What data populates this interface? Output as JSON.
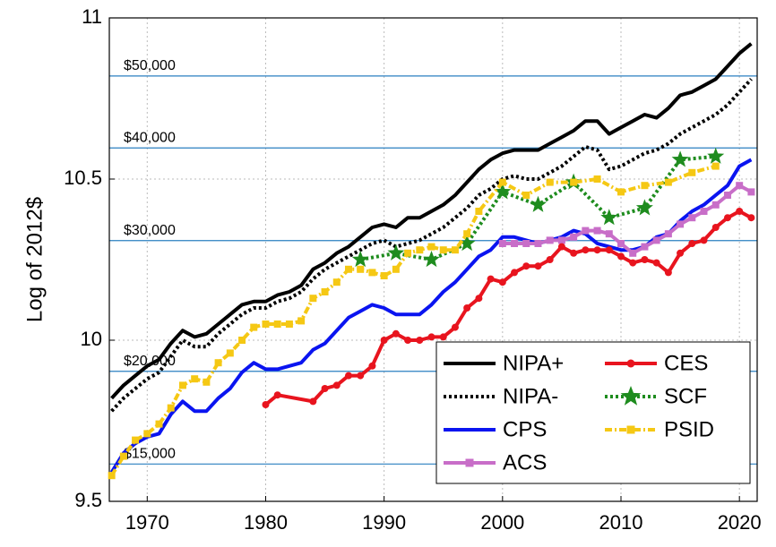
{
  "chart_data": {
    "type": "line",
    "ylabel": "Log of 2012$",
    "xlim": [
      1966.8,
      2021.5
    ],
    "ylim": [
      9.5,
      11
    ],
    "xticks": [
      1970,
      1980,
      1990,
      2000,
      2010,
      2020
    ],
    "yticks": [
      9.5,
      10,
      10.5,
      11
    ],
    "grid": true,
    "legend": "lower right",
    "reference_lines": [
      {
        "value": 10.8198,
        "label": "$50,000"
      },
      {
        "value": 10.5966,
        "label": "$40,000"
      },
      {
        "value": 10.309,
        "label": "$30,000"
      },
      {
        "value": 9.9035,
        "label": "$20,000"
      },
      {
        "value": 9.6158,
        "label": "$15,000"
      }
    ],
    "reference_color": "#2a7fc0",
    "series": [
      {
        "name": "NIPA+",
        "color": "#000000",
        "style": "solid",
        "marker": "none",
        "x": [
          1967,
          1968,
          1969,
          1970,
          1971,
          1972,
          1973,
          1974,
          1975,
          1976,
          1977,
          1978,
          1979,
          1980,
          1981,
          1982,
          1983,
          1984,
          1985,
          1986,
          1987,
          1988,
          1989,
          1990,
          1991,
          1992,
          1993,
          1994,
          1995,
          1996,
          1997,
          1998,
          1999,
          2000,
          2001,
          2002,
          2003,
          2004,
          2005,
          2006,
          2007,
          2008,
          2009,
          2010,
          2011,
          2012,
          2013,
          2014,
          2015,
          2016,
          2017,
          2018,
          2019,
          2020,
          2021
        ],
        "values": [
          9.82,
          9.86,
          9.89,
          9.92,
          9.94,
          9.99,
          10.03,
          10.01,
          10.02,
          10.05,
          10.08,
          10.11,
          10.12,
          10.12,
          10.14,
          10.15,
          10.17,
          10.22,
          10.24,
          10.27,
          10.29,
          10.32,
          10.35,
          10.36,
          10.35,
          10.38,
          10.38,
          10.4,
          10.42,
          10.45,
          10.49,
          10.53,
          10.56,
          10.58,
          10.59,
          10.59,
          10.59,
          10.61,
          10.63,
          10.65,
          10.68,
          10.68,
          10.64,
          10.66,
          10.68,
          10.7,
          10.69,
          10.72,
          10.76,
          10.77,
          10.79,
          10.81,
          10.85,
          10.89,
          10.92
        ]
      },
      {
        "name": "NIPA-",
        "color": "#000000",
        "style": "dotted",
        "marker": "none",
        "x": [
          1967,
          1968,
          1969,
          1970,
          1971,
          1972,
          1973,
          1974,
          1975,
          1976,
          1977,
          1978,
          1979,
          1980,
          1981,
          1982,
          1983,
          1984,
          1985,
          1986,
          1987,
          1988,
          1989,
          1990,
          1991,
          1992,
          1993,
          1994,
          1995,
          1996,
          1997,
          1998,
          1999,
          2000,
          2001,
          2002,
          2003,
          2004,
          2005,
          2006,
          2007,
          2008,
          2009,
          2010,
          2011,
          2012,
          2013,
          2014,
          2015,
          2016,
          2017,
          2018,
          2019,
          2020,
          2021
        ],
        "values": [
          9.78,
          9.82,
          9.85,
          9.88,
          9.9,
          9.95,
          10.0,
          9.98,
          9.98,
          10.02,
          10.05,
          10.08,
          10.1,
          10.1,
          10.12,
          10.13,
          10.15,
          10.19,
          10.22,
          10.24,
          10.26,
          10.28,
          10.3,
          10.31,
          10.29,
          10.3,
          10.31,
          10.33,
          10.35,
          10.38,
          10.41,
          10.45,
          10.47,
          10.5,
          10.51,
          10.5,
          10.5,
          10.52,
          10.54,
          10.57,
          10.6,
          10.59,
          10.53,
          10.54,
          10.56,
          10.58,
          10.59,
          10.61,
          10.64,
          10.66,
          10.68,
          10.7,
          10.73,
          10.77,
          10.81
        ]
      },
      {
        "name": "CPS",
        "color": "#0a14f0",
        "style": "solid",
        "marker": "none",
        "x": [
          1967,
          1968,
          1969,
          1970,
          1971,
          1972,
          1973,
          1974,
          1975,
          1976,
          1977,
          1978,
          1979,
          1980,
          1981,
          1982,
          1983,
          1984,
          1985,
          1986,
          1987,
          1988,
          1989,
          1990,
          1991,
          1992,
          1993,
          1994,
          1995,
          1996,
          1997,
          1998,
          1999,
          2000,
          2001,
          2002,
          2003,
          2004,
          2005,
          2006,
          2007,
          2008,
          2009,
          2010,
          2011,
          2012,
          2013,
          2014,
          2015,
          2016,
          2017,
          2018,
          2019,
          2020,
          2021
        ],
        "values": [
          9.59,
          9.65,
          9.68,
          9.7,
          9.71,
          9.77,
          9.81,
          9.78,
          9.78,
          9.82,
          9.85,
          9.9,
          9.93,
          9.91,
          9.91,
          9.92,
          9.93,
          9.97,
          9.99,
          10.03,
          10.07,
          10.09,
          10.11,
          10.1,
          10.08,
          10.08,
          10.08,
          10.11,
          10.15,
          10.18,
          10.22,
          10.26,
          10.28,
          10.32,
          10.32,
          10.31,
          10.3,
          10.31,
          10.32,
          10.34,
          10.33,
          10.3,
          10.29,
          10.28,
          10.28,
          10.29,
          10.32,
          10.33,
          10.37,
          10.4,
          10.42,
          10.45,
          10.48,
          10.54,
          10.56
        ]
      },
      {
        "name": "ACS",
        "color": "#c86ec8",
        "style": "solid",
        "marker": "square",
        "x": [
          2000,
          2001,
          2002,
          2003,
          2004,
          2005,
          2006,
          2007,
          2008,
          2009,
          2010,
          2011,
          2012,
          2013,
          2014,
          2015,
          2016,
          2017,
          2018,
          2019,
          2020,
          2021
        ],
        "values": [
          10.3,
          10.3,
          10.3,
          10.3,
          10.31,
          10.31,
          10.32,
          10.34,
          10.34,
          10.33,
          10.3,
          10.27,
          10.29,
          10.31,
          10.33,
          10.36,
          10.38,
          10.4,
          10.42,
          10.45,
          10.48,
          10.46
        ]
      },
      {
        "name": "CES",
        "color": "#e8141e",
        "style": "solid",
        "marker": "circle",
        "x": [
          1980,
          1981,
          1984,
          1985,
          1986,
          1987,
          1988,
          1989,
          1990,
          1991,
          1992,
          1993,
          1994,
          1995,
          1996,
          1997,
          1998,
          1999,
          2000,
          2001,
          2002,
          2003,
          2004,
          2005,
          2006,
          2007,
          2008,
          2009,
          2010,
          2011,
          2012,
          2013,
          2014,
          2015,
          2016,
          2017,
          2018,
          2019,
          2020,
          2021
        ],
        "values": [
          9.8,
          9.83,
          9.81,
          9.85,
          9.86,
          9.89,
          9.89,
          9.92,
          10.0,
          10.02,
          10.0,
          10.0,
          10.01,
          10.01,
          10.04,
          10.1,
          10.13,
          10.19,
          10.18,
          10.21,
          10.23,
          10.23,
          10.25,
          10.29,
          10.27,
          10.28,
          10.28,
          10.28,
          10.26,
          10.24,
          10.25,
          10.24,
          10.21,
          10.27,
          10.3,
          10.31,
          10.35,
          10.38,
          10.4,
          10.38
        ]
      },
      {
        "name": "SCF",
        "color": "#1e8c1e",
        "style": "dotted",
        "marker": "star",
        "x": [
          1988,
          1991,
          1994,
          1997,
          2000,
          2003,
          2006,
          2009,
          2012,
          2015,
          2018
        ],
        "values": [
          10.25,
          10.27,
          10.25,
          10.3,
          10.46,
          10.42,
          10.49,
          10.38,
          10.41,
          10.56,
          10.57
        ]
      },
      {
        "name": "PSID",
        "color": "#f5c814",
        "style": "dashdot",
        "marker": "square",
        "x": [
          1967,
          1968,
          1969,
          1970,
          1971,
          1972,
          1973,
          1974,
          1975,
          1976,
          1977,
          1978,
          1979,
          1980,
          1981,
          1982,
          1983,
          1984,
          1985,
          1986,
          1987,
          1988,
          1989,
          1990,
          1991,
          1992,
          1993,
          1994,
          1995,
          1996,
          1997,
          1998,
          2000,
          2002,
          2004,
          2006,
          2008,
          2010,
          2012,
          2014,
          2016,
          2018
        ],
        "values": [
          9.58,
          9.64,
          9.69,
          9.71,
          9.74,
          9.79,
          9.86,
          9.88,
          9.87,
          9.93,
          9.96,
          10.0,
          10.04,
          10.05,
          10.05,
          10.05,
          10.06,
          10.13,
          10.15,
          10.18,
          10.22,
          10.22,
          10.21,
          10.2,
          10.22,
          10.27,
          10.28,
          10.29,
          10.28,
          10.28,
          10.33,
          10.4,
          10.49,
          10.45,
          10.49,
          10.49,
          10.5,
          10.46,
          10.48,
          10.49,
          10.52,
          10.54
        ]
      }
    ]
  }
}
